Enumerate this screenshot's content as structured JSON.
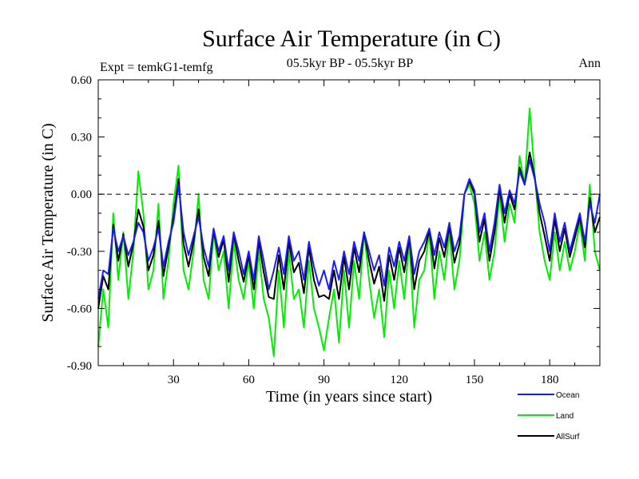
{
  "colors": {
    "ocean": "#1a1aff",
    "land": "#00ee00",
    "allsurf": "#000000",
    "axis": "#000000",
    "zero_line": "#000000"
  },
  "chart_data": {
    "type": "line",
    "title": "Surface Air Temperature (in C)",
    "subtitle": "05.5kyr BP - 05.5kyr BP",
    "left_label": "Expt = temkG1-temfg",
    "right_label": "Ann",
    "xlabel": "Time (in years since start)",
    "ylabel": "Surface Air Temperature (in C)",
    "xlim": [
      0,
      200
    ],
    "ylim": [
      -0.9,
      0.6
    ],
    "xticks": [
      30,
      60,
      90,
      120,
      150,
      180
    ],
    "yticks": [
      -0.9,
      -0.6,
      -0.3,
      0.0,
      0.3,
      0.6
    ],
    "ytick_labels": [
      "-0.90",
      "-0.60",
      "-0.30",
      "0.00",
      "0.30",
      "0.60"
    ],
    "reference_line": 0.0,
    "legend_position": "bottom-right, below plot",
    "series": [
      {
        "name": "Ocean",
        "color": "#1a1aff",
        "x": [
          0,
          2,
          4,
          6,
          8,
          10,
          12,
          14,
          16,
          18,
          20,
          22,
          24,
          26,
          28,
          30,
          32,
          34,
          36,
          38,
          40,
          42,
          44,
          46,
          48,
          50,
          52,
          54,
          56,
          58,
          60,
          62,
          64,
          66,
          68,
          70,
          72,
          74,
          76,
          78,
          80,
          82,
          84,
          86,
          88,
          90,
          92,
          94,
          96,
          98,
          100,
          102,
          104,
          106,
          108,
          110,
          112,
          114,
          116,
          118,
          120,
          122,
          124,
          126,
          128,
          130,
          132,
          134,
          136,
          138,
          140,
          142,
          144,
          146,
          148,
          150,
          152,
          154,
          156,
          158,
          160,
          162,
          164,
          166,
          168,
          170,
          172,
          174,
          176,
          178,
          180,
          182,
          184,
          186,
          188,
          190,
          192,
          194,
          196,
          198,
          200
        ],
        "values": [
          -0.55,
          -0.4,
          -0.42,
          -0.18,
          -0.3,
          -0.22,
          -0.32,
          -0.25,
          -0.15,
          -0.2,
          -0.35,
          -0.28,
          -0.18,
          -0.38,
          -0.25,
          -0.15,
          0.05,
          -0.2,
          -0.32,
          -0.22,
          -0.12,
          -0.28,
          -0.38,
          -0.18,
          -0.3,
          -0.22,
          -0.4,
          -0.2,
          -0.3,
          -0.42,
          -0.3,
          -0.45,
          -0.22,
          -0.35,
          -0.5,
          -0.4,
          -0.28,
          -0.42,
          -0.22,
          -0.35,
          -0.3,
          -0.45,
          -0.25,
          -0.38,
          -0.48,
          -0.4,
          -0.5,
          -0.35,
          -0.45,
          -0.3,
          -0.42,
          -0.25,
          -0.35,
          -0.2,
          -0.3,
          -0.4,
          -0.32,
          -0.48,
          -0.28,
          -0.38,
          -0.25,
          -0.35,
          -0.22,
          -0.42,
          -0.3,
          -0.25,
          -0.18,
          -0.32,
          -0.2,
          -0.28,
          -0.15,
          -0.3,
          -0.22,
          0.0,
          0.08,
          0.02,
          -0.2,
          -0.1,
          -0.3,
          -0.15,
          0.05,
          -0.1,
          0.02,
          -0.05,
          0.12,
          0.05,
          0.18,
          0.08,
          -0.05,
          -0.15,
          -0.3,
          -0.1,
          -0.25,
          -0.15,
          -0.3,
          -0.2,
          -0.1,
          -0.25,
          -0.05,
          -0.15,
          0.0
        ]
      },
      {
        "name": "Land",
        "color": "#00ee00",
        "x": [
          0,
          2,
          4,
          6,
          8,
          10,
          12,
          14,
          16,
          18,
          20,
          22,
          24,
          26,
          28,
          30,
          32,
          34,
          36,
          38,
          40,
          42,
          44,
          46,
          48,
          50,
          52,
          54,
          56,
          58,
          60,
          62,
          64,
          66,
          68,
          70,
          72,
          74,
          76,
          78,
          80,
          82,
          84,
          86,
          88,
          90,
          92,
          94,
          96,
          98,
          100,
          102,
          104,
          106,
          108,
          110,
          112,
          114,
          116,
          118,
          120,
          122,
          124,
          126,
          128,
          130,
          132,
          134,
          136,
          138,
          140,
          142,
          144,
          146,
          148,
          150,
          152,
          154,
          156,
          158,
          160,
          162,
          164,
          166,
          168,
          170,
          172,
          174,
          176,
          178,
          180,
          182,
          184,
          186,
          188,
          190,
          192,
          194,
          196,
          198,
          200
        ],
        "values": [
          -0.8,
          -0.5,
          -0.7,
          -0.1,
          -0.45,
          -0.2,
          -0.55,
          -0.3,
          0.12,
          -0.1,
          -0.5,
          -0.4,
          -0.05,
          -0.55,
          -0.35,
          -0.05,
          0.15,
          -0.4,
          -0.5,
          -0.3,
          0.0,
          -0.45,
          -0.55,
          -0.2,
          -0.4,
          -0.3,
          -0.6,
          -0.25,
          -0.45,
          -0.55,
          -0.35,
          -0.6,
          -0.3,
          -0.55,
          -0.65,
          -0.85,
          -0.4,
          -0.7,
          -0.3,
          -0.55,
          -0.5,
          -0.7,
          -0.35,
          -0.6,
          -0.7,
          -0.82,
          -0.65,
          -0.5,
          -0.78,
          -0.4,
          -0.7,
          -0.35,
          -0.55,
          -0.2,
          -0.45,
          -0.65,
          -0.5,
          -0.75,
          -0.4,
          -0.6,
          -0.35,
          -0.55,
          -0.25,
          -0.7,
          -0.45,
          -0.4,
          -0.2,
          -0.55,
          -0.3,
          -0.45,
          -0.2,
          -0.5,
          -0.35,
          0.0,
          0.05,
          -0.05,
          -0.35,
          -0.2,
          -0.45,
          -0.3,
          0.0,
          -0.25,
          -0.05,
          -0.15,
          0.2,
          0.05,
          0.45,
          0.1,
          -0.2,
          -0.35,
          -0.45,
          -0.2,
          -0.4,
          -0.25,
          -0.4,
          -0.3,
          -0.15,
          -0.35,
          0.05,
          -0.3,
          -0.4
        ]
      },
      {
        "name": "AllSurf",
        "color": "#000000",
        "x": [
          0,
          2,
          4,
          6,
          8,
          10,
          12,
          14,
          16,
          18,
          20,
          22,
          24,
          26,
          28,
          30,
          32,
          34,
          36,
          38,
          40,
          42,
          44,
          46,
          48,
          50,
          52,
          54,
          56,
          58,
          60,
          62,
          64,
          66,
          68,
          70,
          72,
          74,
          76,
          78,
          80,
          82,
          84,
          86,
          88,
          90,
          92,
          94,
          96,
          98,
          100,
          102,
          104,
          106,
          108,
          110,
          112,
          114,
          116,
          118,
          120,
          122,
          124,
          126,
          128,
          130,
          132,
          134,
          136,
          138,
          140,
          142,
          144,
          146,
          148,
          150,
          152,
          154,
          156,
          158,
          160,
          162,
          164,
          166,
          168,
          170,
          172,
          174,
          176,
          178,
          180,
          182,
          184,
          186,
          188,
          190,
          192,
          194,
          196,
          198,
          200
        ],
        "values": [
          -0.6,
          -0.43,
          -0.5,
          -0.16,
          -0.35,
          -0.21,
          -0.38,
          -0.26,
          -0.08,
          -0.17,
          -0.4,
          -0.32,
          -0.14,
          -0.43,
          -0.28,
          -0.12,
          0.08,
          -0.26,
          -0.38,
          -0.25,
          -0.08,
          -0.33,
          -0.43,
          -0.19,
          -0.33,
          -0.24,
          -0.46,
          -0.21,
          -0.35,
          -0.46,
          -0.32,
          -0.5,
          -0.25,
          -0.41,
          -0.54,
          -0.55,
          -0.32,
          -0.5,
          -0.25,
          -0.41,
          -0.36,
          -0.52,
          -0.28,
          -0.45,
          -0.54,
          -0.53,
          -0.55,
          -0.4,
          -0.55,
          -0.33,
          -0.5,
          -0.28,
          -0.41,
          -0.2,
          -0.35,
          -0.47,
          -0.38,
          -0.56,
          -0.32,
          -0.45,
          -0.28,
          -0.41,
          -0.23,
          -0.5,
          -0.35,
          -0.3,
          -0.19,
          -0.39,
          -0.23,
          -0.33,
          -0.17,
          -0.36,
          -0.26,
          0.0,
          0.07,
          0.0,
          -0.25,
          -0.13,
          -0.35,
          -0.2,
          0.03,
          -0.15,
          0.0,
          -0.08,
          0.14,
          0.05,
          0.22,
          0.09,
          -0.1,
          -0.22,
          -0.35,
          -0.13,
          -0.3,
          -0.18,
          -0.33,
          -0.23,
          -0.12,
          -0.28,
          -0.02,
          -0.2,
          -0.12
        ]
      }
    ]
  }
}
